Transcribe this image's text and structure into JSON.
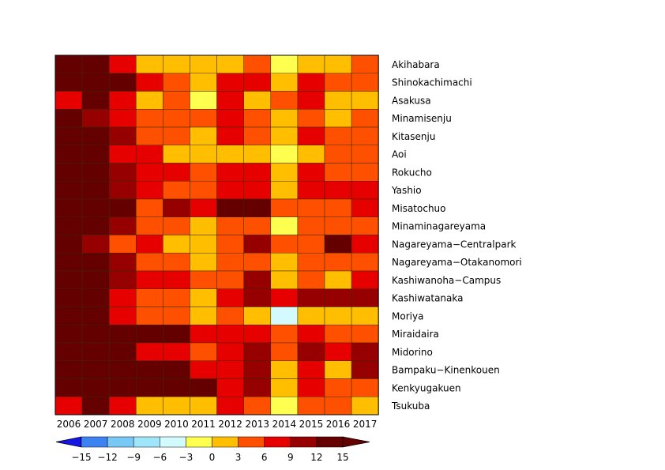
{
  "chart_data": {
    "type": "heatmap",
    "title": "",
    "xlabel": "",
    "ylabel": "",
    "x": [
      "2006",
      "2007",
      "2008",
      "2009",
      "2010",
      "2011",
      "2012",
      "2013",
      "2014",
      "2015",
      "2016",
      "2017"
    ],
    "y": [
      "Akihabara",
      "Shinokachimachi",
      "Asakusa",
      "Minamisenju",
      "Kitasenju",
      "Aoi",
      "Rokucho",
      "Yashio",
      "Misatochuo",
      "Minaminagareyama",
      "Nagareyama−Centralpark",
      "Nagareyama−Otakanomori",
      "Kashiwanoha−Campus",
      "Kashiwatanaka",
      "Moriya",
      "Miraidaira",
      "Midorino",
      "Bampaku−Kinenkouen",
      "Kenkyugakuen",
      "Tsukuba"
    ],
    "values": [
      [
        16,
        14,
        8,
        2,
        2,
        2,
        2,
        5,
        -2,
        2,
        2,
        5
      ],
      [
        16,
        16,
        16,
        8,
        5,
        2,
        8,
        8,
        2,
        8,
        5,
        5
      ],
      [
        8,
        14,
        8,
        2,
        5,
        -2,
        8,
        2,
        5,
        8,
        2,
        2
      ],
      [
        16,
        11,
        8,
        5,
        5,
        5,
        8,
        5,
        2,
        5,
        2,
        5
      ],
      [
        16,
        16,
        11,
        5,
        5,
        2,
        8,
        5,
        2,
        8,
        5,
        5
      ],
      [
        16,
        14,
        8,
        8,
        2,
        2,
        2,
        2,
        -2,
        2,
        5,
        5
      ],
      [
        16,
        16,
        11,
        8,
        8,
        5,
        8,
        8,
        2,
        8,
        5,
        5
      ],
      [
        16,
        16,
        11,
        8,
        5,
        5,
        8,
        8,
        2,
        8,
        8,
        8
      ],
      [
        16,
        16,
        14,
        5,
        11,
        8,
        14,
        16,
        5,
        5,
        5,
        8
      ],
      [
        16,
        16,
        11,
        5,
        5,
        2,
        5,
        5,
        -2,
        5,
        5,
        5
      ],
      [
        16,
        11,
        5,
        8,
        2,
        2,
        5,
        11,
        5,
        5,
        16,
        8
      ],
      [
        16,
        16,
        11,
        5,
        5,
        2,
        5,
        5,
        2,
        5,
        5,
        5
      ],
      [
        16,
        16,
        11,
        8,
        8,
        5,
        5,
        11,
        2,
        5,
        2,
        8
      ],
      [
        16,
        14,
        8,
        5,
        5,
        2,
        8,
        11,
        8,
        11,
        11,
        11
      ],
      [
        16,
        16,
        8,
        5,
        5,
        2,
        5,
        2,
        -5,
        2,
        2,
        2
      ],
      [
        16,
        16,
        16,
        16,
        14,
        8,
        8,
        8,
        5,
        8,
        5,
        5
      ],
      [
        16,
        16,
        16,
        8,
        8,
        5,
        8,
        11,
        5,
        11,
        8,
        11
      ],
      [
        16,
        16,
        16,
        16,
        14,
        8,
        8,
        11,
        2,
        8,
        2,
        11
      ],
      [
        16,
        16,
        16,
        16,
        16,
        14,
        8,
        11,
        2,
        8,
        5,
        5
      ],
      [
        8,
        14,
        8,
        2,
        2,
        2,
        8,
        5,
        -2,
        5,
        5,
        2
      ]
    ],
    "colorbar": {
      "ticks": [
        "−15",
        "−12",
        "−9",
        "−6",
        "−3",
        "0",
        "3",
        "6",
        "9",
        "12",
        "15"
      ],
      "colors": [
        "#1414e6",
        "#3c82f0",
        "#78c8f5",
        "#a0e6fa",
        "#d2faff",
        "#ffff50",
        "#ffbe00",
        "#ff5000",
        "#e60000",
        "#960000",
        "#640000"
      ],
      "extend": "both"
    },
    "grid": true,
    "colorbar_placement": "bottom"
  }
}
